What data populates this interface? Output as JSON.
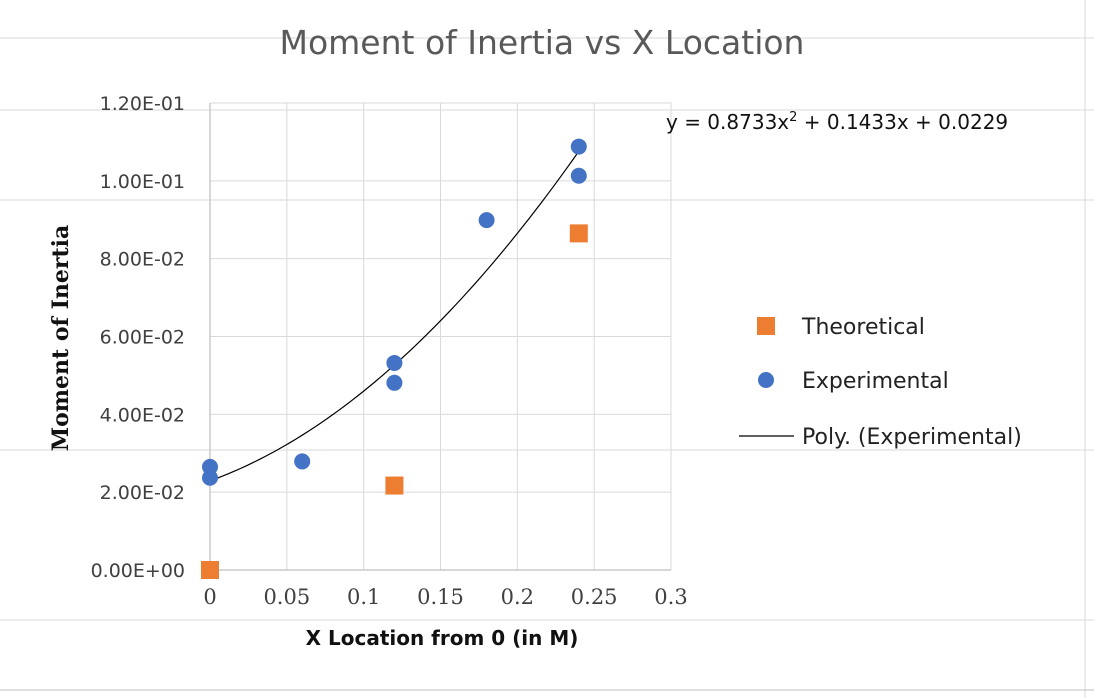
{
  "chart_data": {
    "type": "scatter",
    "title": "Moment of Inertia vs X Location",
    "xlabel": "X Location from 0 (in M)",
    "ylabel": "Moment of Inertia",
    "xlim": [
      0,
      0.3
    ],
    "ylim": [
      0,
      0.12
    ],
    "x_ticks": [
      "0",
      "0.05",
      "0.1",
      "0.15",
      "0.2",
      "0.25",
      "0.3"
    ],
    "y_ticks": [
      "0.00E+00",
      "2.00E-02",
      "4.00E-02",
      "6.00E-02",
      "8.00E-02",
      "1.00E-01",
      "1.20E-01"
    ],
    "grid": true,
    "legend_position": "right",
    "series": [
      {
        "name": "Theoretical",
        "marker": "square",
        "color": "#ED7D31",
        "points": [
          [
            0,
            0.0
          ],
          [
            0.12,
            0.0217
          ],
          [
            0.24,
            0.0865
          ]
        ]
      },
      {
        "name": "Experimental",
        "marker": "circle",
        "color": "#4472C4",
        "points": [
          [
            0,
            0.0265
          ],
          [
            0,
            0.0237
          ],
          [
            0.06,
            0.0279
          ],
          [
            0.12,
            0.0532
          ],
          [
            0.12,
            0.0481
          ],
          [
            0.18,
            0.0899
          ],
          [
            0.24,
            0.1088
          ],
          [
            0.24,
            0.1013
          ]
        ]
      }
    ],
    "trendline": {
      "name": "Poly. (Experimental)",
      "type": "polynomial",
      "color": "#000000",
      "coefficients": [
        0.8733,
        0.1433,
        0.0229
      ],
      "x_range": [
        0,
        0.24
      ],
      "equation": {
        "prefix": "y = 0.8733x",
        "exponent": "2",
        "suffix": " + 0.1433x + 0.0229"
      }
    }
  }
}
